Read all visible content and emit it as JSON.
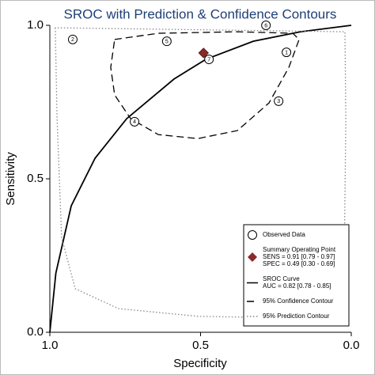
{
  "chart_data": {
    "type": "scatter",
    "title": "SROC with Prediction & Confidence Contours",
    "xlabel": "Specificity",
    "ylabel": "Sensitivity",
    "xlim": [
      1,
      0
    ],
    "ylim": [
      0,
      1
    ],
    "xticks": [
      {
        "value": 1,
        "label": "1.0"
      },
      {
        "value": 0.5,
        "label": "0.5"
      },
      {
        "value": 0,
        "label": "0.0"
      }
    ],
    "yticks": [
      {
        "value": 0,
        "label": "0.0"
      },
      {
        "value": 0.5,
        "label": "0.5"
      },
      {
        "value": 1,
        "label": "1.0"
      }
    ],
    "legend": "lower right",
    "series": [
      {
        "name": "Observed Data",
        "marker": "circle",
        "color": "#000000",
        "labels": [
          "1",
          "2",
          "3",
          "4",
          "5",
          "6",
          "7"
        ],
        "x": [
          0.215,
          0.924,
          0.241,
          0.719,
          0.612,
          0.283,
          0.472
        ],
        "y": [
          0.912,
          0.954,
          0.753,
          0.686,
          0.948,
          1.0,
          0.889
        ]
      },
      {
        "name": "Summary Operating Point",
        "marker": "diamond",
        "color": "#8b2a2a",
        "notes": [
          "SENS = 0.91 [0.79 - 0.97]",
          "SPEC = 0.49 [0.30 - 0.69]"
        ],
        "x": [
          0.49
        ],
        "y": [
          0.91
        ]
      },
      {
        "name": "SROC Curve",
        "line": "solid",
        "color": "#000000",
        "notes": [
          "AUC = 0.82 [0.78 - 0.85]"
        ],
        "x": [
          1.0,
          0.98,
          0.929,
          0.85,
          0.745,
          0.588,
          0.483,
          0.325,
          0.168,
          0.0
        ],
        "y": [
          0.0,
          0.193,
          0.412,
          0.567,
          0.696,
          0.825,
          0.889,
          0.948,
          0.979,
          1.0
        ]
      },
      {
        "name": "95% Confidence Contour",
        "line": "dashed",
        "color": "#000000",
        "x": [
          0.785,
          0.64,
          0.378,
          0.194,
          0.173,
          0.207,
          0.273,
          0.378,
          0.509,
          0.64,
          0.732,
          0.785,
          0.798
        ],
        "y": [
          0.954,
          0.974,
          0.979,
          0.974,
          0.954,
          0.863,
          0.747,
          0.657,
          0.631,
          0.644,
          0.696,
          0.773,
          0.863
        ]
      },
      {
        "name": "95% Prediction Contour",
        "line": "dotted",
        "color": "#888888",
        "x": [
          0.982,
          0.976,
          0.961,
          0.916,
          0.772,
          0.509,
          0.168,
          0.05,
          0.024,
          0.018,
          0.021
        ],
        "y": [
          0.992,
          0.696,
          0.309,
          0.142,
          0.077,
          0.052,
          0.046,
          0.072,
          0.18,
          0.696,
          0.979
        ]
      }
    ]
  }
}
